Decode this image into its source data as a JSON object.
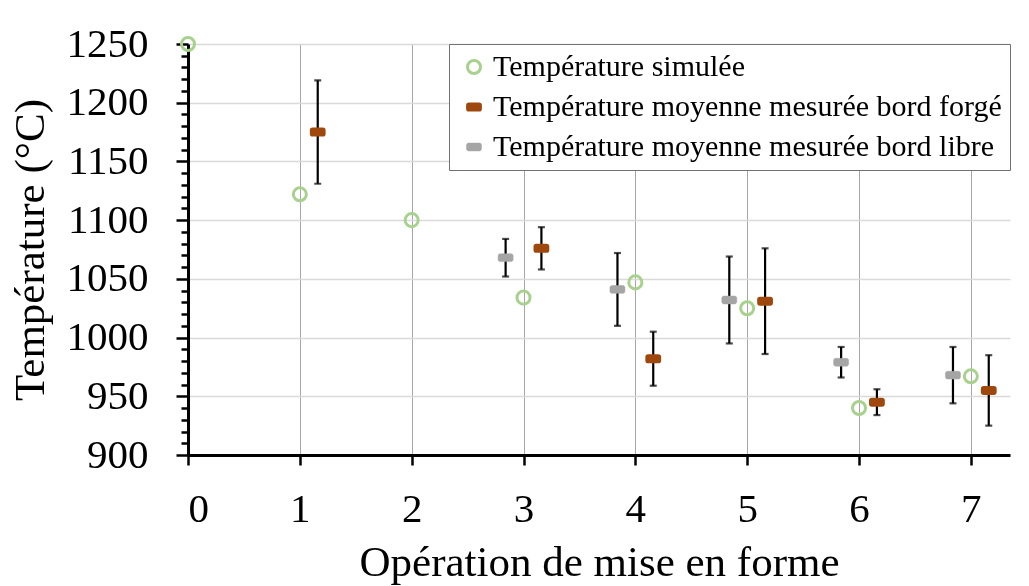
{
  "chart_data": {
    "type": "scatter",
    "xlabel": "Opération de mise en forme",
    "ylabel": "Température (°C)",
    "xlim": [
      0,
      7.35
    ],
    "xticks": [
      0,
      1,
      2,
      3,
      4,
      5,
      6,
      7
    ],
    "ylim": [
      900,
      1250
    ],
    "yticks": [
      900,
      {
        "value": 910,
        "label": null
      },
      {
        "value": 920,
        "label": null
      },
      {
        "value": 930,
        "label": null
      },
      {
        "value": 940,
        "label": null
      },
      950,
      {
        "value": 960,
        "label": null
      },
      {
        "value": 970,
        "label": null
      },
      {
        "value": 980,
        "label": null
      },
      {
        "value": 990,
        "label": null
      },
      1000,
      {
        "value": 1010,
        "label": null
      },
      {
        "value": 1020,
        "label": null
      },
      {
        "value": 1030,
        "label": null
      },
      {
        "value": 1040,
        "label": null
      },
      1050,
      {
        "value": 1060,
        "label": null
      },
      {
        "value": 1070,
        "label": null
      },
      {
        "value": 1080,
        "label": null
      },
      {
        "value": 1090,
        "label": null
      },
      1100,
      {
        "value": 1110,
        "label": null
      },
      {
        "value": 1120,
        "label": null
      },
      {
        "value": 1130,
        "label": null
      },
      {
        "value": 1140,
        "label": null
      },
      1150,
      {
        "value": 1160,
        "label": null
      },
      {
        "value": 1170,
        "label": null
      },
      {
        "value": 1180,
        "label": null
      },
      {
        "value": 1190,
        "label": null
      },
      1200,
      {
        "value": 1210,
        "label": null
      },
      {
        "value": 1220,
        "label": null
      },
      {
        "value": 1230,
        "label": null
      },
      {
        "value": 1240,
        "label": null
      },
      1250
    ],
    "grid": true,
    "legend": "top right",
    "series": [
      {
        "name": "Température simulée",
        "marker": "circle",
        "color": "#a9d18e",
        "x": [
          0,
          1,
          2,
          3,
          4,
          5,
          6,
          7
        ],
        "values": [
          1250,
          1122,
          1100,
          1034,
          1047,
          1025,
          940,
          967
        ]
      },
      {
        "name": "Température moyenne mesurée bord forgé",
        "color": "#9e480e",
        "x": [
          1.16,
          3.16,
          4.16,
          5.16,
          6.16,
          7.16
        ],
        "values": [
          1175,
          1076,
          982,
          1031,
          945,
          955
        ],
        "errors": [
          44,
          18,
          23,
          45,
          11,
          30
        ]
      },
      {
        "name": "Température moyenne mesurée bord libre",
        "color": "#a5a5a5",
        "x": [
          2.84,
          3.84,
          4.84,
          5.84,
          6.84
        ],
        "values": [
          1068,
          1041,
          1032,
          979,
          968
        ],
        "errors": [
          16,
          31,
          37,
          13,
          24
        ]
      }
    ]
  }
}
